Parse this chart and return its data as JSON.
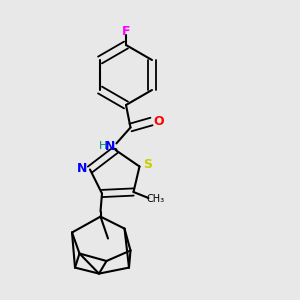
{
  "background_color": "#e8e8e8",
  "bond_color": "#000000",
  "atom_colors": {
    "F": "#ff00ff",
    "O": "#ff0000",
    "N": "#0000ff",
    "S": "#cccc00",
    "H": "#008080",
    "C": "#000000"
  },
  "figsize": [
    3.0,
    3.0
  ],
  "dpi": 100
}
